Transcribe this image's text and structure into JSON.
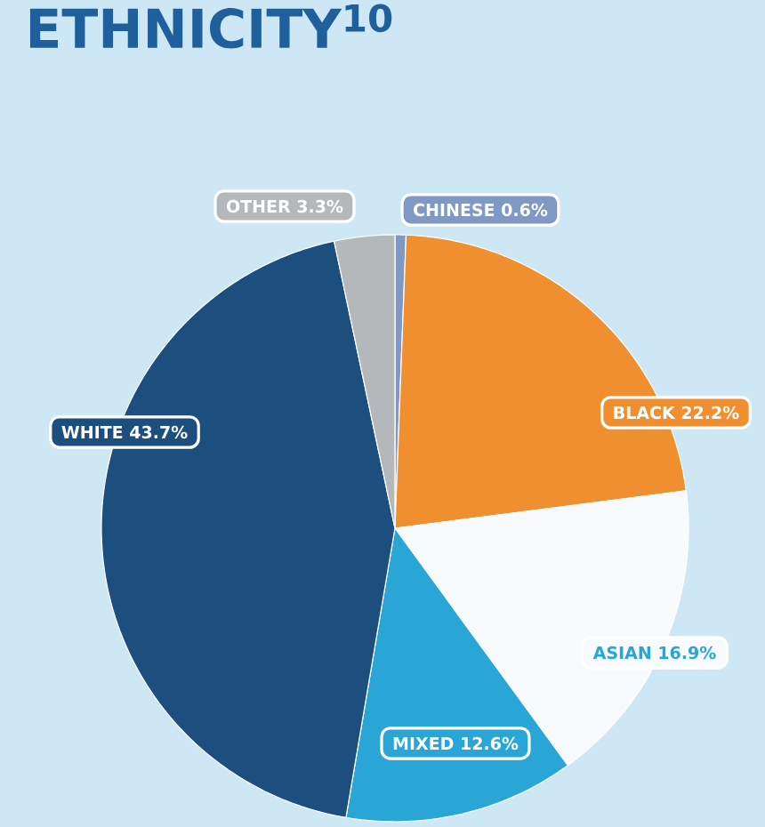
{
  "chart_data": {
    "type": "pie",
    "title": "ETHNICITY$^{10}$",
    "categories": [
      "CHINESE",
      "BLACK",
      "ASIAN",
      "MIXED",
      "WHITE",
      "OTHER"
    ],
    "values": [
      0.6,
      22.2,
      16.9,
      12.6,
      43.7,
      3.3
    ],
    "value_labels": [
      "0.6%",
      "22.2%",
      "16.9%",
      "12.6%",
      "43.7%",
      "3.3%"
    ],
    "colors": [
      "#7f98c4",
      "#ef8f2f",
      "#f7fbfd",
      "#2aa6d6",
      "#1c4f7e",
      "#b5b8bb"
    ]
  }
}
